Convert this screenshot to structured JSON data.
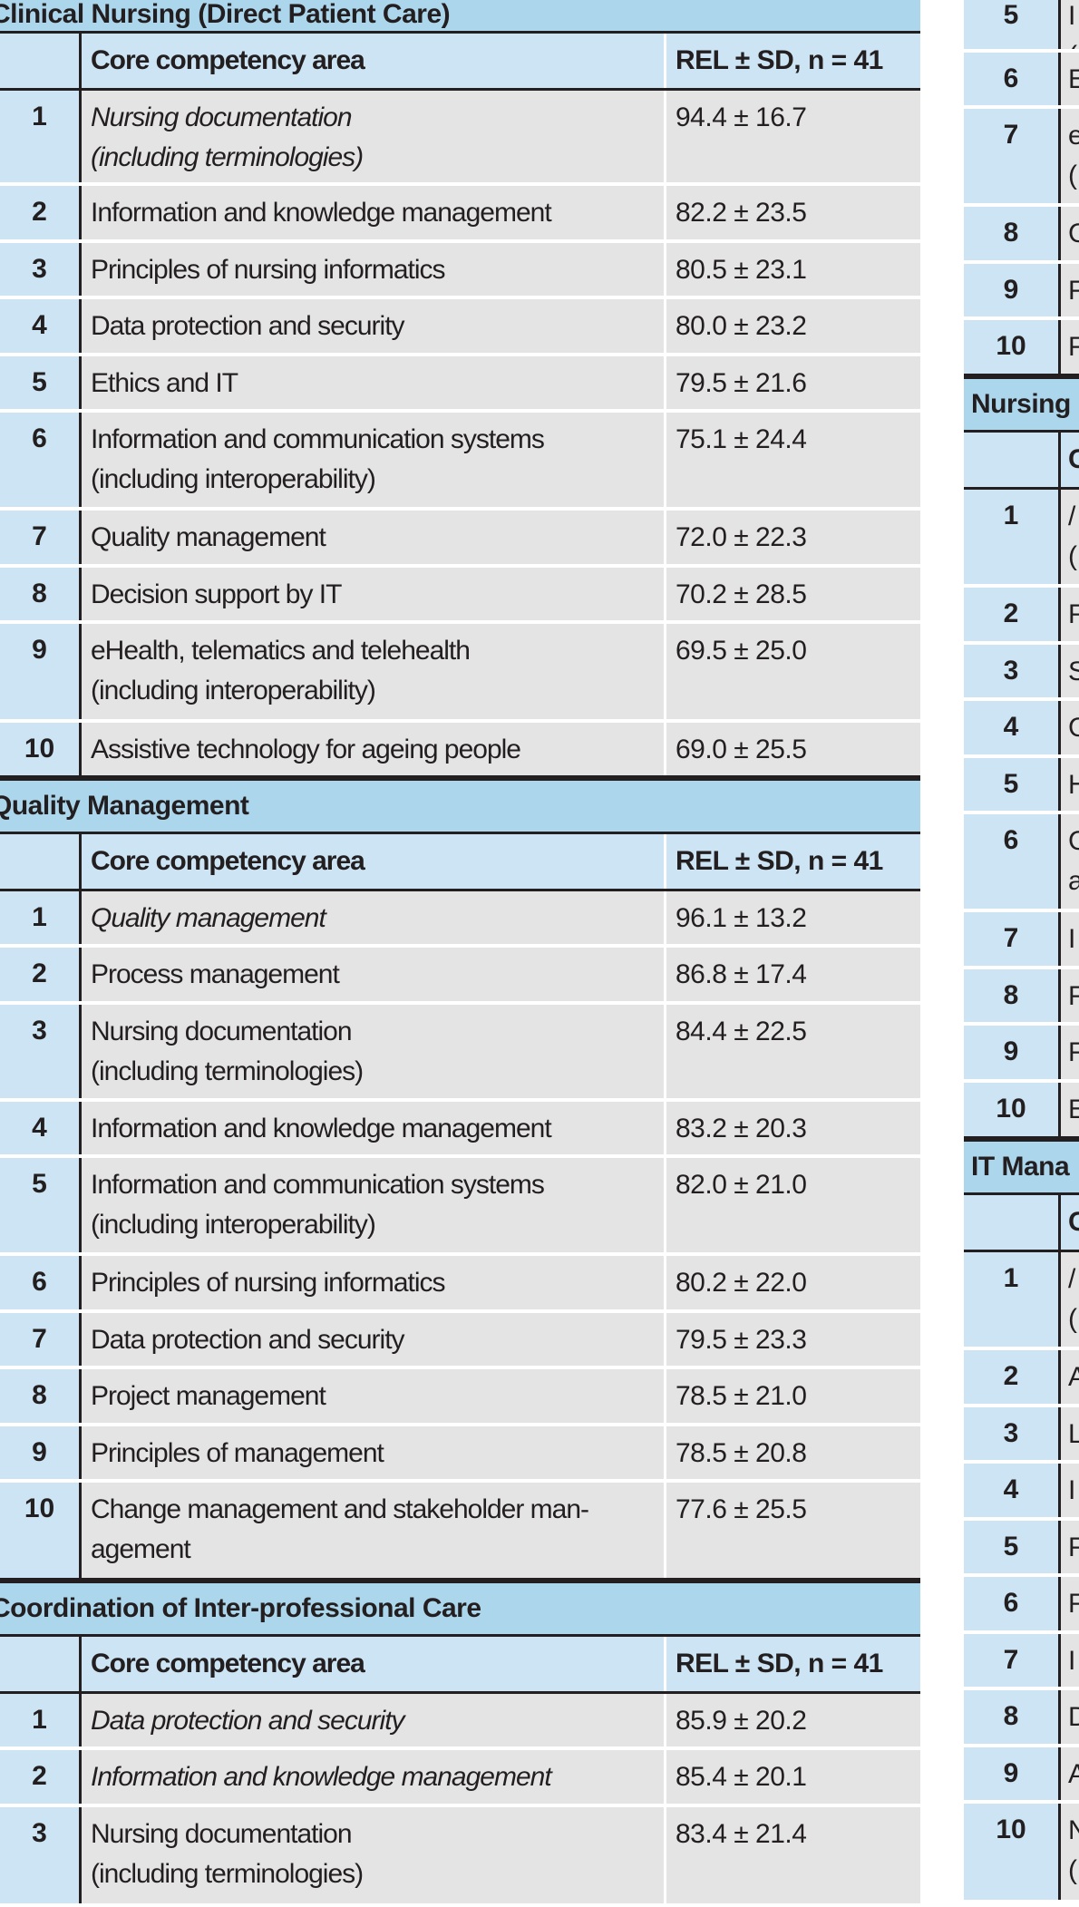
{
  "left": {
    "sections": [
      {
        "title": "Clinical Nursing (Direct Patient Care)",
        "header": {
          "area": "Core competency area",
          "value": "REL ± SD, n = 41"
        },
        "rows": [
          {
            "rank": "1",
            "area": "Nursing documentation\n(including terminologies)",
            "value": "94.4 ± 16.7",
            "italic": true
          },
          {
            "rank": "2",
            "area": "Information and knowledge management",
            "value": "82.2 ± 23.5"
          },
          {
            "rank": "3",
            "area": "Principles of nursing informatics",
            "value": "80.5 ± 23.1"
          },
          {
            "rank": "4",
            "area": "Data protection and security",
            "value": "80.0 ± 23.2"
          },
          {
            "rank": "5",
            "area": "Ethics and IT",
            "value": "79.5 ± 21.6"
          },
          {
            "rank": "6",
            "area": "Information and communication systems\n(including interoperability)",
            "value": "75.1 ± 24.4"
          },
          {
            "rank": "7",
            "area": "Quality management",
            "value": "72.0 ± 22.3"
          },
          {
            "rank": "8",
            "area": "Decision support by IT",
            "value": "70.2 ± 28.5"
          },
          {
            "rank": "9",
            "area": "eHealth, telematics and telehealth\n(including interoperability)",
            "value": "69.5 ± 25.0"
          },
          {
            "rank": "10",
            "area": "Assistive technology for ageing people",
            "value": "69.0 ± 25.5"
          }
        ]
      },
      {
        "title": "Quality Management",
        "header": {
          "area": "Core competency area",
          "value": "REL ± SD, n = 41"
        },
        "rows": [
          {
            "rank": "1",
            "area": "Quality management",
            "value": "96.1 ± 13.2",
            "italic": true
          },
          {
            "rank": "2",
            "area": "Process management",
            "value": "86.8 ± 17.4"
          },
          {
            "rank": "3",
            "area": "Nursing documentation\n(including terminologies)",
            "value": "84.4 ± 22.5"
          },
          {
            "rank": "4",
            "area": "Information and knowledge management",
            "value": "83.2 ± 20.3"
          },
          {
            "rank": "5",
            "area": "Information and communication systems\n(including interoperability)",
            "value": "82.0 ± 21.0"
          },
          {
            "rank": "6",
            "area": "Principles of nursing informatics",
            "value": "80.2 ± 22.0"
          },
          {
            "rank": "7",
            "area": "Data protection and security",
            "value": "79.5 ± 23.3"
          },
          {
            "rank": "8",
            "area": "Project management",
            "value": "78.5 ± 21.0"
          },
          {
            "rank": "9",
            "area": "Principles of management",
            "value": "78.5 ± 20.8"
          },
          {
            "rank": "10",
            "area": "Change management and stakeholder man-\nagement",
            "value": "77.6 ± 25.5"
          }
        ]
      },
      {
        "title": "Coordination of Inter-professional Care",
        "header": {
          "area": "Core competency area",
          "value": "REL ± SD, n = 41"
        },
        "rows": [
          {
            "rank": "1",
            "area": "Data protection and security",
            "value": "85.9 ± 20.2",
            "italic": true
          },
          {
            "rank": "2",
            "area": "Information and knowledge management",
            "value": "85.4 ± 20.1",
            "italic": true
          },
          {
            "rank": "3",
            "area": "Nursing documentation\n(including terminologies)",
            "value": "83.4 ± 21.4"
          }
        ]
      }
    ]
  },
  "right": {
    "top_rows": [
      {
        "rank": "5",
        "area": "I\n("
      },
      {
        "rank": "6",
        "area": "E"
      },
      {
        "rank": "7",
        "area": "e\n("
      },
      {
        "rank": "8",
        "area": "C"
      },
      {
        "rank": "9",
        "area": "F"
      },
      {
        "rank": "10",
        "area": "F"
      }
    ],
    "sections": [
      {
        "title": "Nursing",
        "header": {
          "area": "C"
        },
        "rows": [
          {
            "rank": "1",
            "area": "/\n("
          },
          {
            "rank": "2",
            "area": "F"
          },
          {
            "rank": "3",
            "area": "S"
          },
          {
            "rank": "4",
            "area": "C"
          },
          {
            "rank": "5",
            "area": "H"
          },
          {
            "rank": "6",
            "area": "C\na"
          },
          {
            "rank": "7",
            "area": "I"
          },
          {
            "rank": "8",
            "area": "F"
          },
          {
            "rank": "9",
            "area": "F"
          },
          {
            "rank": "10",
            "area": "E"
          }
        ]
      },
      {
        "title": "IT Mana",
        "header": {
          "area": "C"
        },
        "rows": [
          {
            "rank": "1",
            "area": "/\n("
          },
          {
            "rank": "2",
            "area": "A"
          },
          {
            "rank": "3",
            "area": "L"
          },
          {
            "rank": "4",
            "area": "I"
          },
          {
            "rank": "5",
            "area": "F"
          },
          {
            "rank": "6",
            "area": "F"
          },
          {
            "rank": "7",
            "area": "I"
          },
          {
            "rank": "8",
            "area": "D"
          },
          {
            "rank": "9",
            "area": "A"
          },
          {
            "rank": "10",
            "area": "N\n("
          }
        ]
      }
    ]
  },
  "colors": {
    "section_bg": "#acd6ec",
    "header_bg": "#cce4f3",
    "cell_bg": "#e4e4e5",
    "rule": "#231f20"
  }
}
